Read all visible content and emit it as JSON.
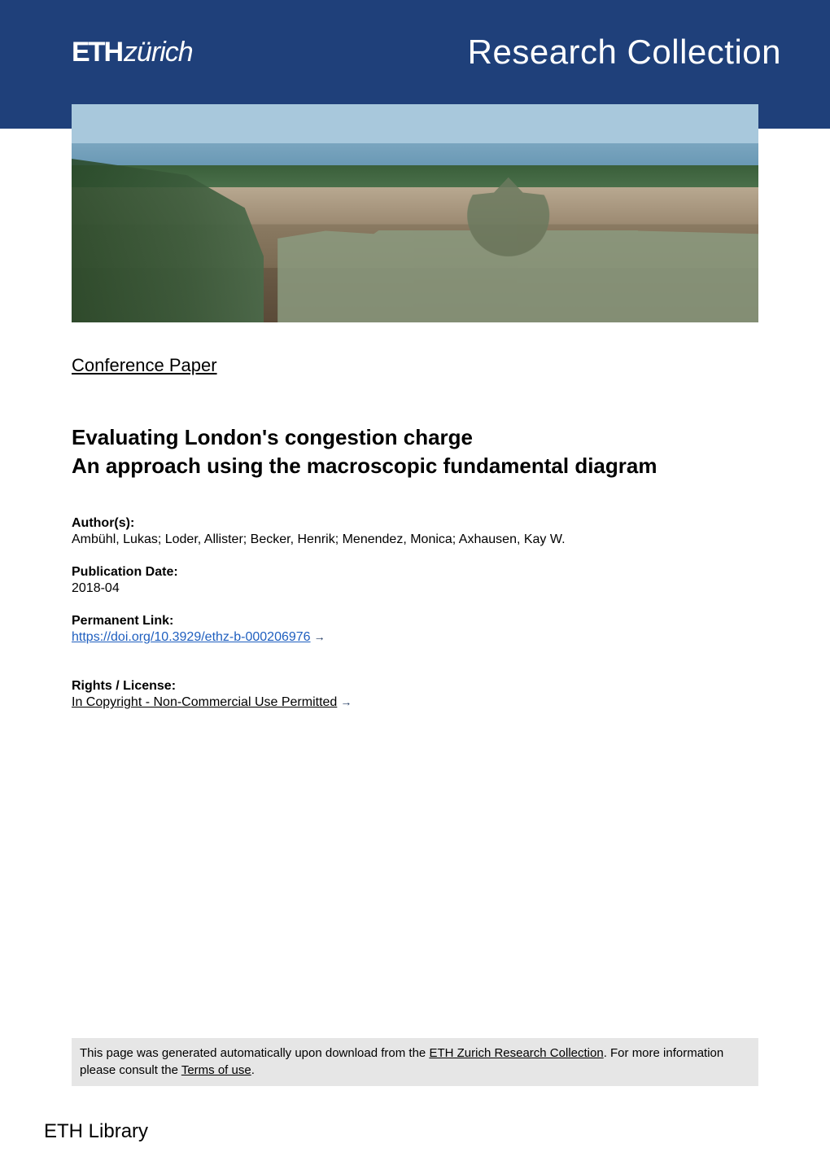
{
  "colors": {
    "header_bg": "#1f407a",
    "header_text": "#ffffff",
    "body_text": "#000000",
    "link": "#1f5fbf",
    "footer_bg": "#e6e6e6"
  },
  "header": {
    "logo_bold": "ETH",
    "logo_light": "zürich",
    "title": "Research Collection"
  },
  "doc_type": "Conference Paper",
  "title_line1": "Evaluating London's congestion charge",
  "title_line2": "An approach using the macroscopic fundamental diagram",
  "authors": {
    "label": "Author(s):",
    "value": "Ambühl, Lukas; Loder, Allister; Becker, Henrik; Menendez, Monica; Axhausen, Kay W."
  },
  "pubdate": {
    "label": "Publication Date:",
    "value": "2018-04"
  },
  "permalink": {
    "label": "Permanent Link:",
    "url": "https://doi.org/10.3929/ethz-b-000206976",
    "arrow": "→"
  },
  "license": {
    "label": "Rights / License:",
    "text": "In Copyright - Non-Commercial Use Permitted",
    "arrow": "→"
  },
  "footer": {
    "prefix": "This page was generated automatically upon download from the ",
    "link1": "ETH Zurich Research Collection",
    "middle": ". For more information please consult the ",
    "link2": "Terms of use",
    "suffix": "."
  },
  "library": "ETH Library"
}
